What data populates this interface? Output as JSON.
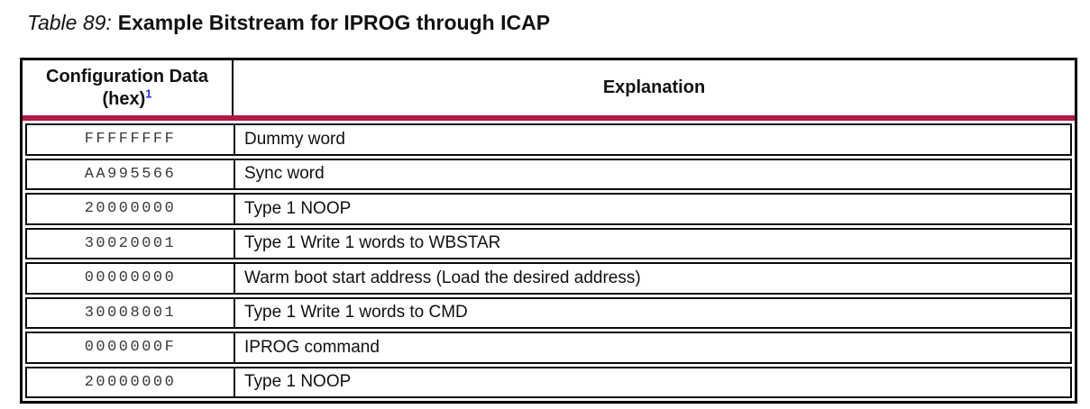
{
  "title": {
    "caption": "Table 89:",
    "text": "Example Bitstream for IPROG through ICAP"
  },
  "table": {
    "columns": [
      {
        "header": "Configuration Data (hex)",
        "footnote_ref": "1"
      },
      {
        "header": "Explanation"
      }
    ],
    "rows": [
      {
        "hex": "FFFFFFFF",
        "explanation": "Dummy word"
      },
      {
        "hex": "AA995566",
        "explanation": "Sync word"
      },
      {
        "hex": "20000000",
        "explanation": "Type 1 NOOP"
      },
      {
        "hex": "30020001",
        "explanation": "Type 1 Write 1 words to WBSTAR"
      },
      {
        "hex": "00000000",
        "explanation": "Warm boot start address (Load the desired address)"
      },
      {
        "hex": "30008001",
        "explanation": "Type 1 Write 1 words to CMD"
      },
      {
        "hex": "0000000F",
        "explanation": "IPROG command"
      },
      {
        "hex": "20000000",
        "explanation": "Type 1 NOOP"
      }
    ],
    "colors": {
      "header_rule": "#b11a46",
      "footnote_link": "#2130d8",
      "border": "#000000"
    }
  }
}
